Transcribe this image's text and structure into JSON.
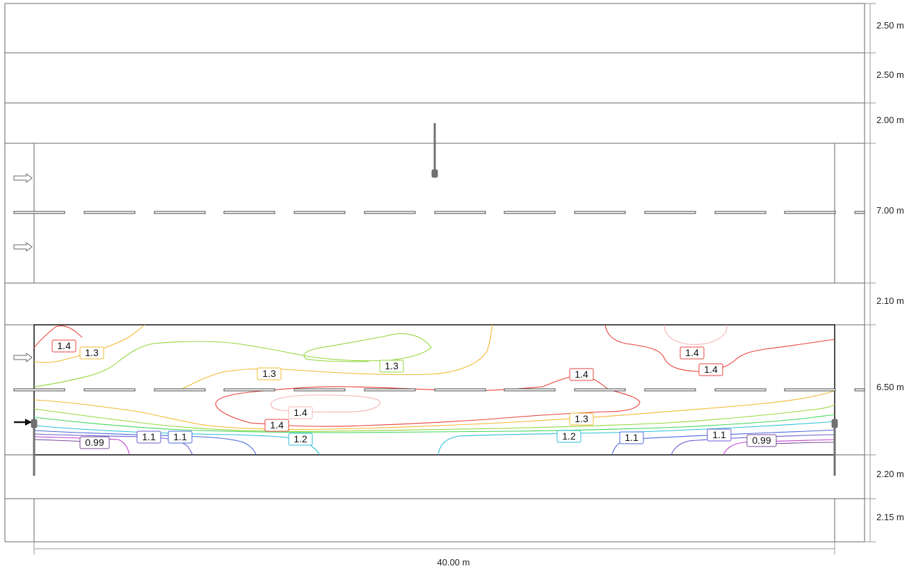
{
  "plan": {
    "total_length_label": "40.00 m",
    "strips": [
      {
        "id": "strip-1",
        "width_label": "2.50 m"
      },
      {
        "id": "strip-2",
        "width_label": "2.50 m"
      },
      {
        "id": "strip-3",
        "width_label": "2.00 m"
      },
      {
        "id": "road-1",
        "width_label": "7.00 m"
      },
      {
        "id": "strip-5",
        "width_label": "2.10 m"
      },
      {
        "id": "road-2",
        "width_label": "6.50 m"
      },
      {
        "id": "strip-7",
        "width_label": "2.20 m"
      },
      {
        "id": "strip-8",
        "width_label": "2.15 m"
      }
    ]
  },
  "isolines": [
    {
      "id": "iso-1",
      "value": "1.4",
      "color": "#e8413c"
    },
    {
      "id": "iso-2",
      "value": "1.3",
      "color": "#f2b830"
    },
    {
      "id": "iso-3",
      "value": "1.3",
      "color": "#93d63a"
    },
    {
      "id": "iso-4",
      "value": "1.3",
      "color": "#f2b830"
    },
    {
      "id": "iso-5",
      "value": "1.4",
      "color": "#e8413c"
    },
    {
      "id": "iso-6",
      "value": "1.4",
      "color": "#e8413c"
    },
    {
      "id": "iso-7",
      "value": "1.4",
      "color": "#e8413c"
    },
    {
      "id": "iso-8",
      "value": "1.4",
      "color": "#f4b3b3"
    },
    {
      "id": "iso-9",
      "value": "1.4",
      "color": "#e8413c"
    },
    {
      "id": "iso-10",
      "value": "1.3",
      "color": "#f2b830"
    },
    {
      "id": "iso-11",
      "value": "0.99",
      "color": "#7a4a9a"
    },
    {
      "id": "iso-12",
      "value": "1.1",
      "color": "#6a5acd"
    },
    {
      "id": "iso-13",
      "value": "1.1",
      "color": "#4a6ad8"
    },
    {
      "id": "iso-14",
      "value": "1.2",
      "color": "#2bbdd8"
    },
    {
      "id": "iso-15",
      "value": "1.2",
      "color": "#2bbdd8"
    },
    {
      "id": "iso-16",
      "value": "1.1",
      "color": "#4a6ad8"
    },
    {
      "id": "iso-17",
      "value": "1.1",
      "color": "#6a5acd"
    },
    {
      "id": "iso-18",
      "value": "0.99",
      "color": "#7a4a9a"
    }
  ],
  "colors": {
    "line": "#555555",
    "frame": "#222222",
    "pole": "#707070",
    "red": "#e8413c",
    "pink": "#f4b3b3",
    "orange": "#f2b830",
    "green": "#93d63a",
    "lightgreen": "#3fd65a",
    "cyan": "#2bbdd8",
    "blue": "#4a6ad8",
    "violet": "#6a5acd",
    "magenta": "#c040d0"
  }
}
